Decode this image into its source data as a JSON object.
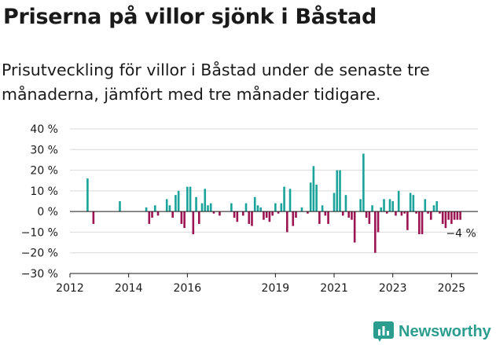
{
  "header": {
    "title": "Priserna på villor sjönk i Båstad",
    "subtitle": "Prisutveckling för villor i Båstad under de senaste tre månaderna, jämfört med tre månader tidigare."
  },
  "logo": {
    "icon": "newsworthy-chart-icon",
    "text": "Newsworthy"
  },
  "colors": {
    "positive": "#1aa39a",
    "negative": "#9c1451",
    "grid": "#d9d9d9",
    "axis": "#1a1a1a"
  },
  "chart_data": {
    "type": "bar",
    "x_unit": "year",
    "xlim": [
      2012,
      2025.9
    ],
    "ylim": [
      -30,
      40
    ],
    "yticks": [
      40,
      30,
      20,
      10,
      0,
      -10,
      -20,
      -30
    ],
    "ytick_labels": [
      "40 %",
      "30 %",
      "20 %",
      "10 %",
      "0 %",
      "−10 %",
      "−20 %",
      "−30 %"
    ],
    "xticks": [
      2012,
      2014,
      2016,
      2019,
      2021,
      2023,
      2025
    ],
    "xtick_labels": [
      "2012",
      "2014",
      "2016",
      "2019",
      "2021",
      "2023",
      "2025"
    ],
    "grid": true,
    "last_value_label": "−4 %",
    "x": [
      2012.6,
      2012.8,
      2013.7,
      2014.6,
      2014.7,
      2014.8,
      2014.9,
      2015.0,
      2015.1,
      2015.3,
      2015.4,
      2015.5,
      2015.6,
      2015.7,
      2015.8,
      2015.9,
      2016.0,
      2016.1,
      2016.2,
      2016.3,
      2016.4,
      2016.5,
      2016.6,
      2016.7,
      2016.8,
      2016.9,
      2017.0,
      2017.1,
      2017.5,
      2017.6,
      2017.7,
      2017.8,
      2017.9,
      2018.0,
      2018.1,
      2018.2,
      2018.3,
      2018.4,
      2018.5,
      2018.6,
      2018.7,
      2018.8,
      2018.9,
      2019.0,
      2019.1,
      2019.2,
      2019.3,
      2019.4,
      2019.5,
      2019.6,
      2019.7,
      2019.8,
      2019.9,
      2020.0,
      2020.1,
      2020.2,
      2020.3,
      2020.4,
      2020.5,
      2020.6,
      2020.7,
      2020.8,
      2020.9,
      2021.0,
      2021.1,
      2021.2,
      2021.3,
      2021.4,
      2021.5,
      2021.6,
      2021.7,
      2021.8,
      2021.9,
      2022.0,
      2022.1,
      2022.2,
      2022.3,
      2022.4,
      2022.5,
      2022.6,
      2022.7,
      2022.8,
      2022.9,
      2023.0,
      2023.1,
      2023.2,
      2023.3,
      2023.4,
      2023.5,
      2023.6,
      2023.7,
      2023.8,
      2023.9,
      2024.0,
      2024.1,
      2024.2,
      2024.3,
      2024.4,
      2024.5,
      2024.6,
      2024.7,
      2024.8,
      2024.9,
      2025.0,
      2025.1,
      2025.2,
      2025.3
    ],
    "values": [
      16,
      -6,
      5,
      2,
      -6,
      -3,
      3,
      -2,
      0,
      6,
      3,
      -3,
      8,
      10,
      -6,
      -8,
      12,
      12,
      -11,
      7,
      -6,
      4,
      11,
      3,
      4,
      -1,
      0,
      -2,
      4,
      -3,
      -5,
      0,
      -2,
      4,
      -6,
      -7,
      7,
      3,
      2,
      -4,
      -3,
      -5,
      -2,
      4,
      -1,
      4,
      12,
      -10,
      11,
      -7,
      -3,
      0,
      2,
      0,
      -1,
      14,
      22,
      13,
      -6,
      3,
      -2,
      -6,
      0,
      9,
      20,
      20,
      -2,
      8,
      -3,
      -4,
      -15,
      0,
      6,
      28,
      -3,
      -6,
      3,
      -20,
      -10,
      2,
      6,
      -1,
      6,
      5,
      -2,
      10,
      -2,
      -1,
      -9,
      9,
      8,
      -1,
      -11,
      -11,
      6,
      -1,
      -4,
      3,
      5,
      -1,
      -6,
      -8,
      -4,
      -6,
      -4,
      -4,
      -4
    ]
  }
}
